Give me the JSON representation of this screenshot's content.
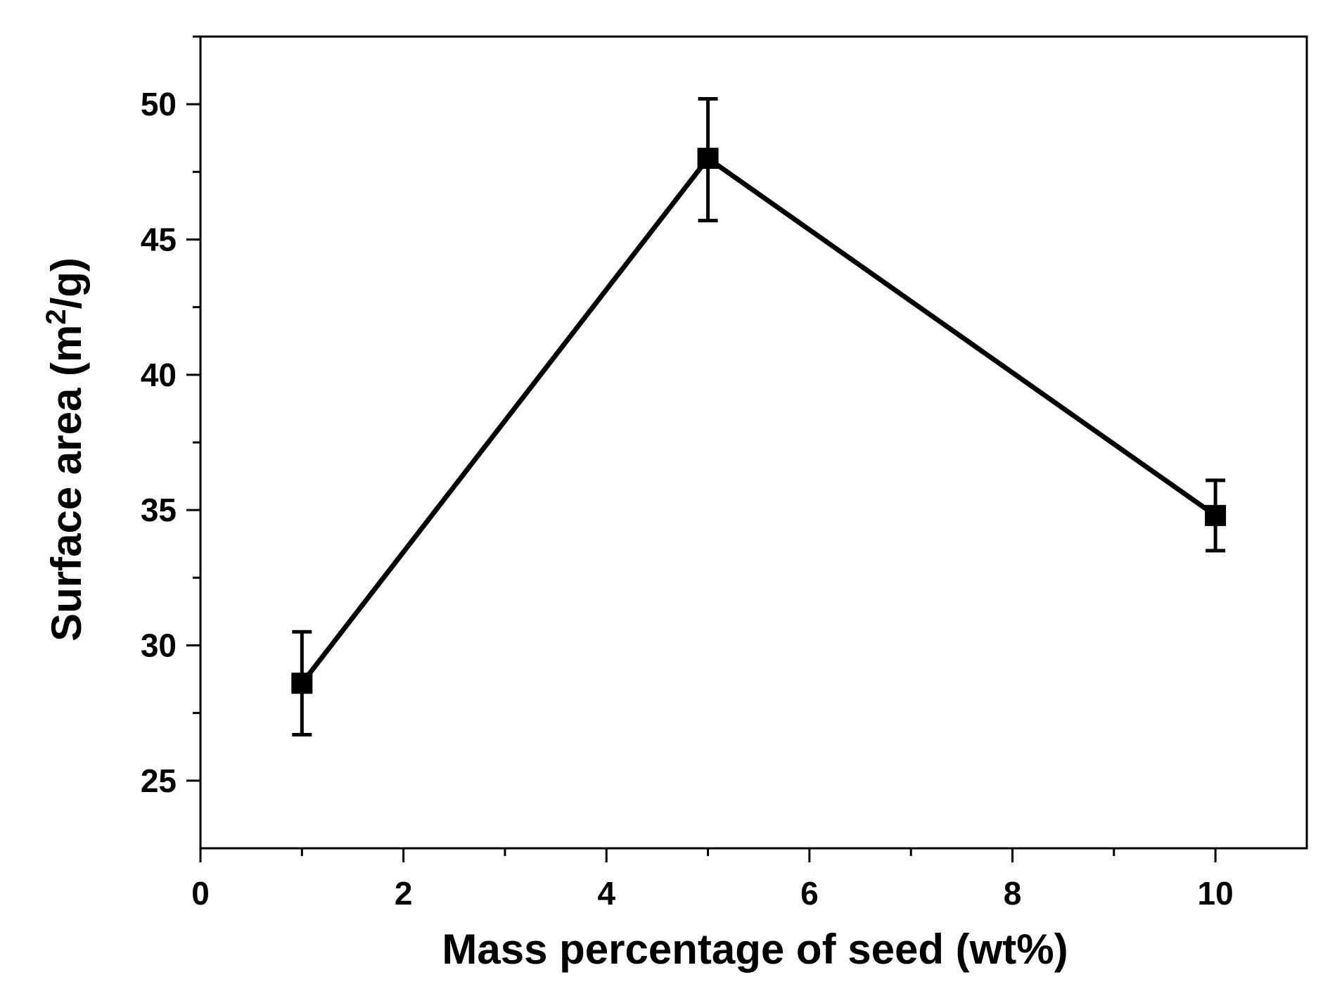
{
  "chart_data": {
    "type": "line",
    "title": "",
    "xlabel": "Mass percentage of seed (wt%)",
    "ylabel": {
      "prefix": "Surface area (m",
      "superscript": "2",
      "suffix": "/g)"
    },
    "xlim": [
      0,
      10.9
    ],
    "ylim": [
      22.5,
      52.5
    ],
    "x_ticks": [
      0,
      2,
      4,
      6,
      8,
      10
    ],
    "x_tick_labels": [
      "0",
      "2",
      "4",
      "6",
      "8",
      "10"
    ],
    "y_ticks": [
      25,
      30,
      35,
      40,
      45,
      50
    ],
    "y_tick_labels": [
      "25",
      "30",
      "35",
      "40",
      "45",
      "50"
    ],
    "grid": false,
    "legend": null,
    "series": [
      {
        "name": "Surface area",
        "marker": "square",
        "color": "#000000",
        "x": [
          1,
          5,
          10
        ],
        "y": [
          28.6,
          48.0,
          34.8
        ],
        "error_lower": [
          1.9,
          2.3,
          1.3
        ],
        "error_upper": [
          1.9,
          2.2,
          1.3
        ]
      }
    ]
  }
}
